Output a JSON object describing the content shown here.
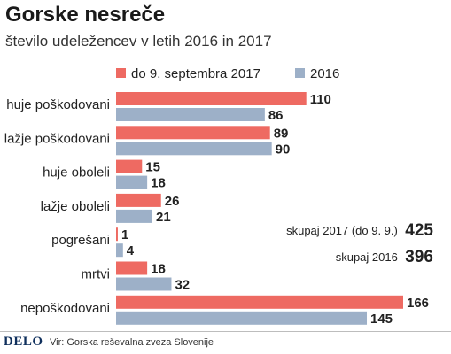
{
  "header": {
    "title": "Gorske nesreče",
    "subtitle": "število udeležencev v letih 2016 in 2017"
  },
  "chart_data": {
    "type": "bar",
    "orientation": "horizontal",
    "categories": [
      "huje poškodovani",
      "lažje poškodovani",
      "huje oboleli",
      "lažje oboleli",
      "pogrešani",
      "mrtvi",
      "nepoškodovani"
    ],
    "series": [
      {
        "name": "do 9. septembra 2017",
        "color": "#ee6a62",
        "values": [
          110,
          89,
          15,
          26,
          1,
          18,
          166
        ]
      },
      {
        "name": "2016",
        "color": "#9db0c8",
        "values": [
          86,
          90,
          18,
          21,
          4,
          32,
          145
        ]
      }
    ],
    "legend_position": "top",
    "grid": false
  },
  "totals": [
    {
      "label": "skupaj 2017 (do 9. 9.)",
      "value": "425"
    },
    {
      "label": "skupaj 2016",
      "value": "396"
    }
  ],
  "footer": {
    "logo": "DELO",
    "source": "Vir: Gorska reševalna zveza Slovenije"
  }
}
